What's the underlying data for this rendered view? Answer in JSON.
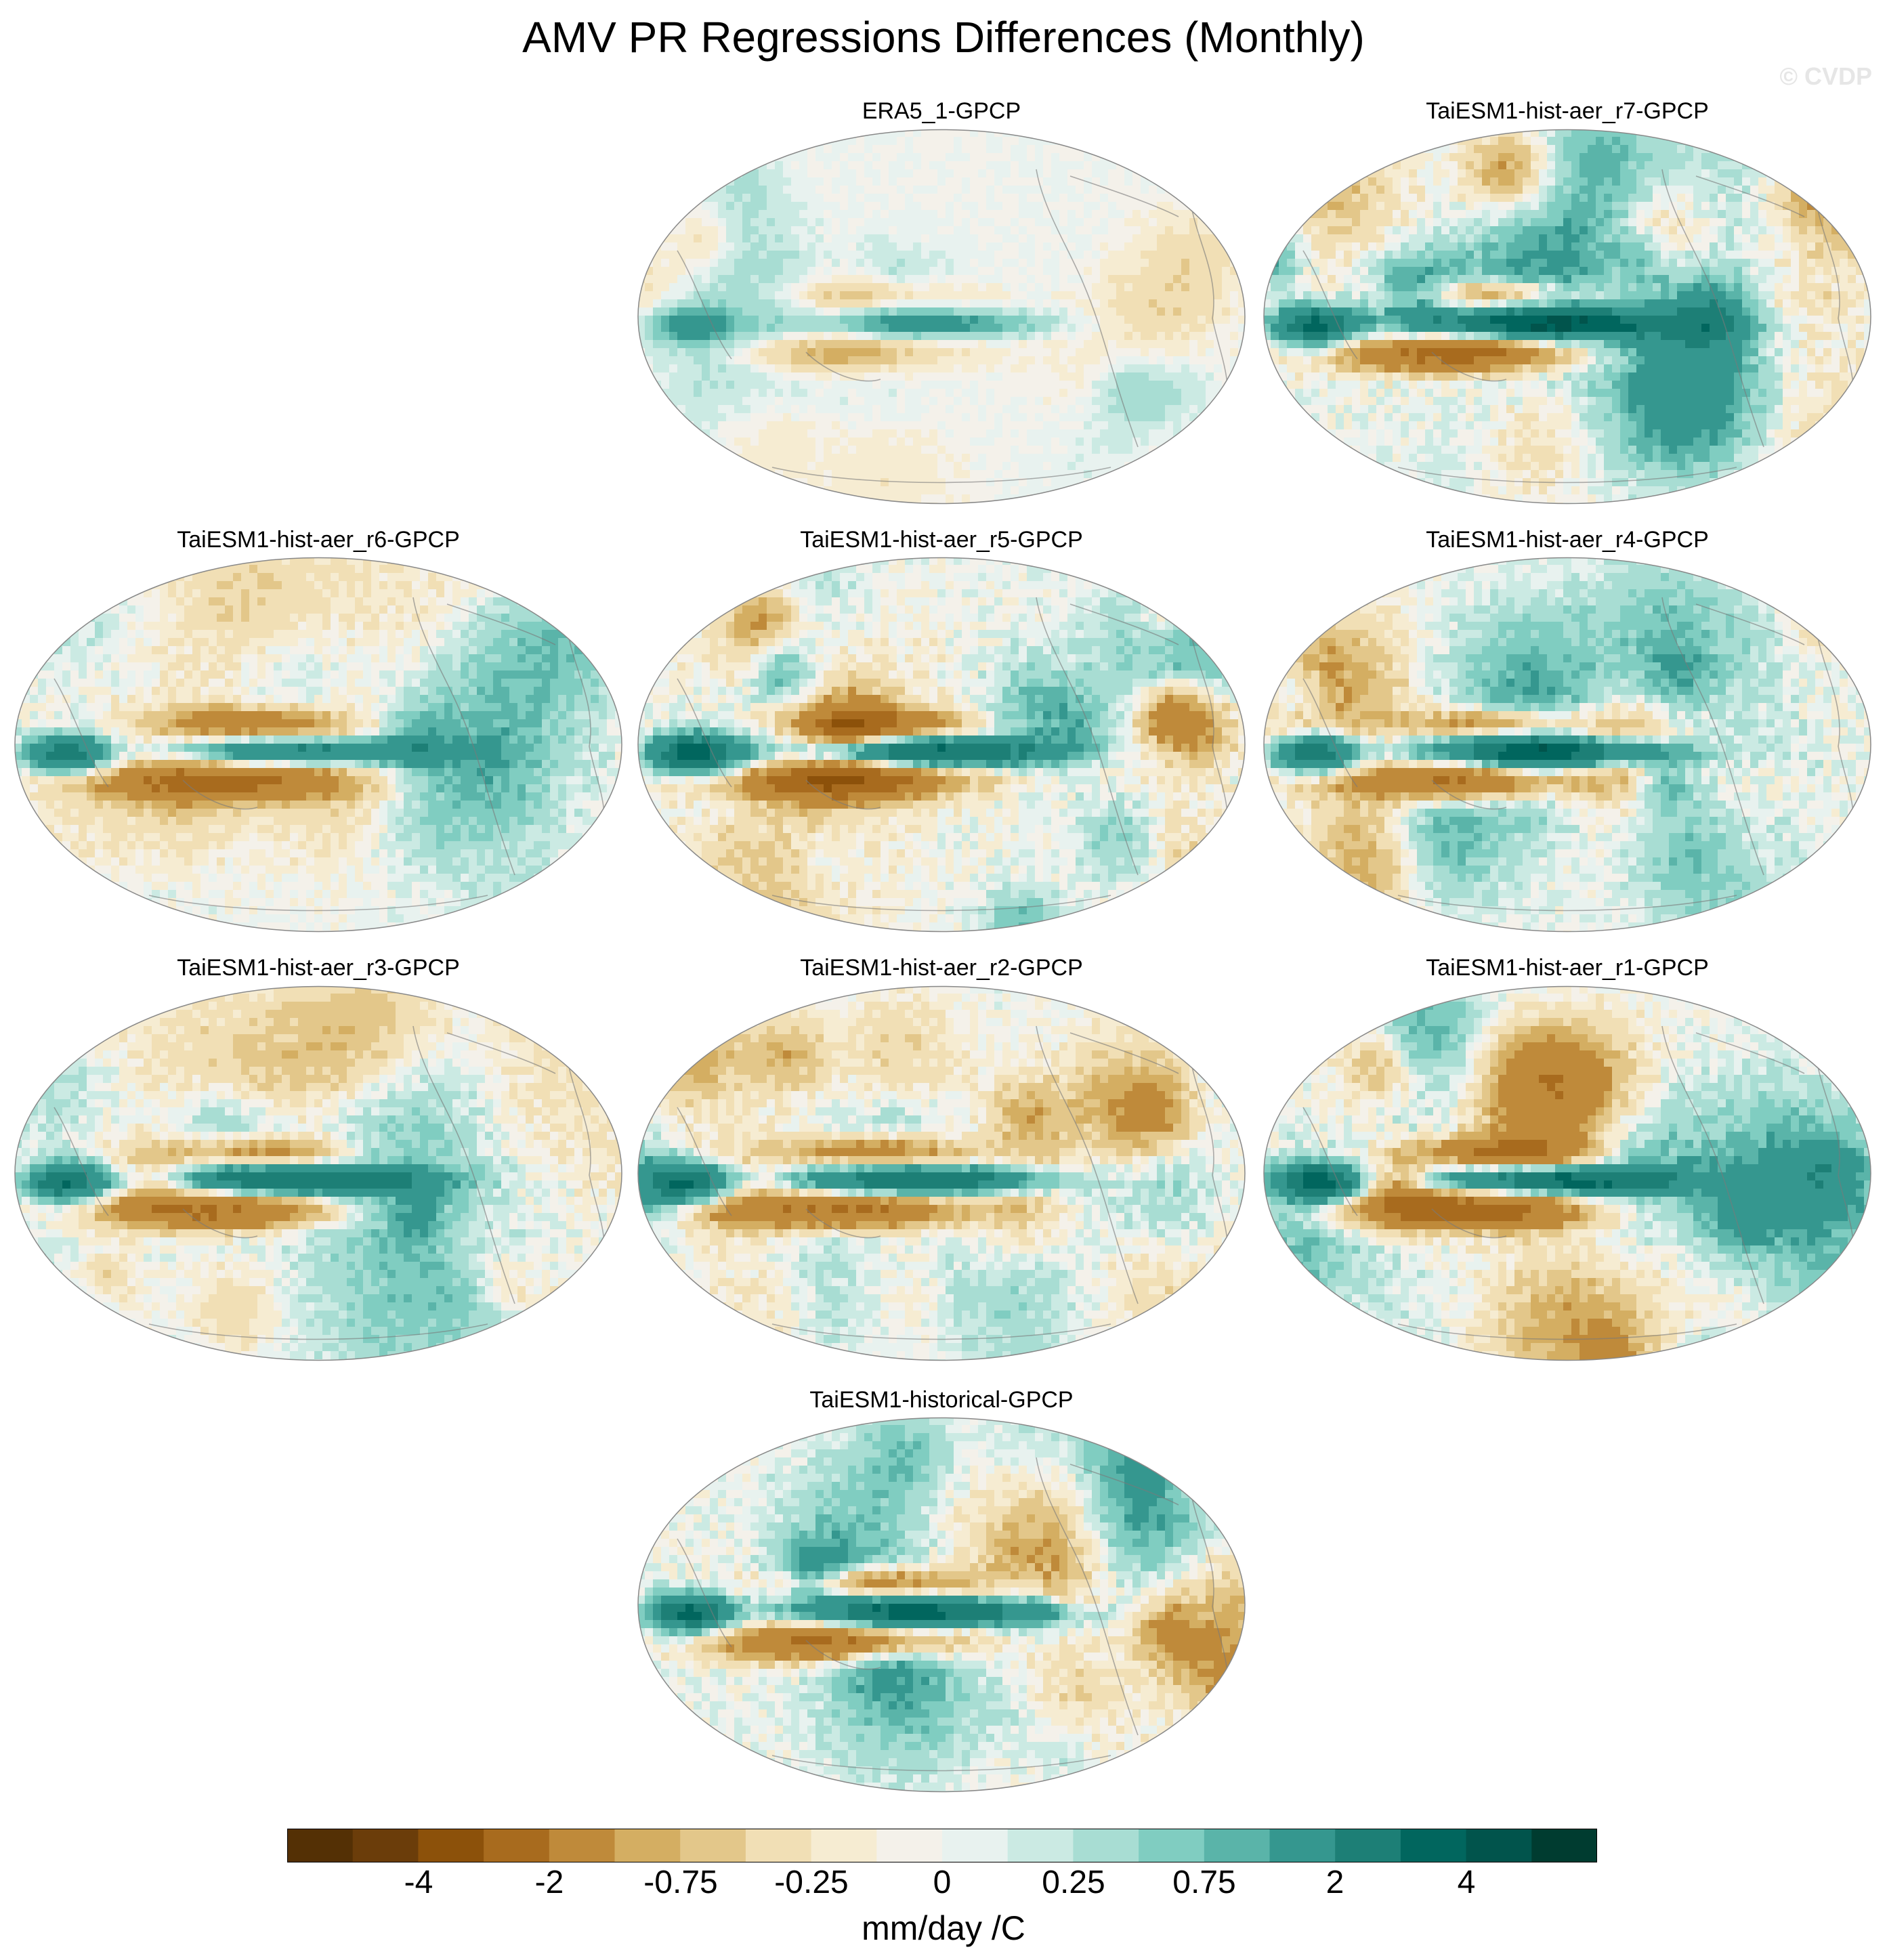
{
  "title": "AMV PR Regressions Differences (Monthly)",
  "credit": "© CVDP",
  "chart_data": {
    "type": "heatmap",
    "title": "AMV PR Regressions Differences (Monthly)",
    "projection": "robinson-like global maps",
    "panels": [
      {
        "id": "p1",
        "title": "ERA5_1-GPCP",
        "strength": 0.35
      },
      {
        "id": "p2",
        "title": "TaiESM1-hist-aer_r7-GPCP",
        "strength": 1.0
      },
      {
        "id": "p3",
        "title": "TaiESM1-hist-aer_r6-GPCP",
        "strength": 0.8
      },
      {
        "id": "p4",
        "title": "TaiESM1-hist-aer_r5-GPCP",
        "strength": 1.0
      },
      {
        "id": "p5",
        "title": "TaiESM1-hist-aer_r4-GPCP",
        "strength": 0.95
      },
      {
        "id": "p6",
        "title": "TaiESM1-hist-aer_r3-GPCP",
        "strength": 0.85
      },
      {
        "id": "p7",
        "title": "TaiESM1-hist-aer_r2-GPCP",
        "strength": 0.9
      },
      {
        "id": "p8",
        "title": "TaiESM1-hist-aer_r1-GPCP",
        "strength": 1.0
      },
      {
        "id": "p9",
        "title": "TaiESM1-historical-GPCP",
        "strength": 0.95
      }
    ],
    "colorbar": {
      "units": "mm/day /C",
      "levels": [
        -5,
        -4,
        -3,
        -2,
        -1,
        -0.75,
        -0.5,
        -0.25,
        -0.1,
        0,
        0.1,
        0.25,
        0.5,
        0.75,
        1,
        2,
        3,
        4,
        5
      ],
      "tick_labels": [
        "-4",
        "-2",
        "-0.75",
        "-0.25",
        "0",
        "0.25",
        "0.75",
        "2",
        "4"
      ],
      "colors": [
        "#543005",
        "#6b3d0a",
        "#8c510a",
        "#a86b1e",
        "#bf8a3a",
        "#d4ae62",
        "#e3c78a",
        "#f1dfb5",
        "#f6ecd2",
        "#f4f1ea",
        "#e8f2ef",
        "#cbeae3",
        "#a8ddd3",
        "#80cdc1",
        "#5ab4a9",
        "#35978f",
        "#1d7f76",
        "#01665e",
        "#01544c",
        "#003c30"
      ]
    }
  }
}
